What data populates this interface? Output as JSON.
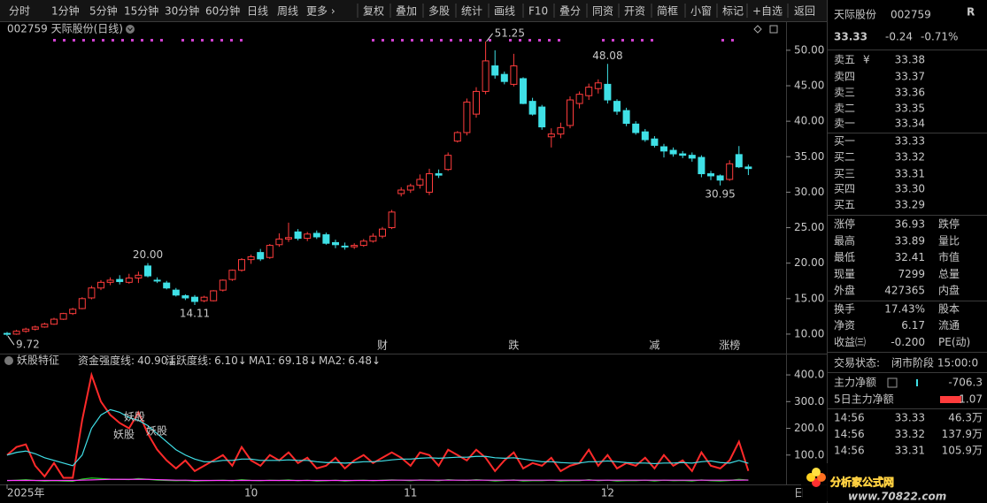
{
  "toolbar": {
    "periods": [
      "分时",
      "1分钟",
      "5分钟",
      "15分钟",
      "30分钟",
      "60分钟",
      "日线",
      "周线",
      "更多 ›"
    ],
    "active": "日线",
    "tools": [
      "复权",
      "叠加",
      "多股",
      "统计",
      "画线",
      "F10",
      "叠分",
      "同资",
      "开资",
      "简框",
      "小窗",
      "标记",
      "+自选"
    ],
    "back": "返回"
  },
  "chart_data": [
    {
      "type": "candlestick",
      "title": "002759 天际股份(日线)",
      "up_color": "#ff3c3c",
      "down_color": "#3fe0e6",
      "ylim": [
        7.5,
        52.1
      ],
      "yticks": [
        {
          "value": 10,
          "label": "10.00"
        },
        {
          "value": 15,
          "label": "15.00"
        },
        {
          "value": 20,
          "label": "20.00"
        },
        {
          "value": 25,
          "label": "25.00"
        },
        {
          "value": 30,
          "label": "30.00"
        },
        {
          "value": 35,
          "label": "35.00"
        },
        {
          "value": 40,
          "label": "40.00"
        },
        {
          "value": 45,
          "label": "45.00"
        },
        {
          "value": 50,
          "label": "50.00"
        }
      ],
      "xticks": [
        {
          "value": 0,
          "label": "2025年"
        },
        {
          "value": 26,
          "label": "10"
        },
        {
          "value": 43,
          "label": "11"
        },
        {
          "value": 64,
          "label": "12"
        }
      ],
      "ohlc": [
        [
          10.1,
          10.3,
          9.72,
          10.0
        ],
        [
          10.0,
          10.6,
          9.9,
          10.4
        ],
        [
          10.4,
          10.9,
          10.2,
          10.7
        ],
        [
          10.7,
          11.2,
          10.5,
          11.0
        ],
        [
          11.0,
          11.6,
          10.9,
          11.4
        ],
        [
          11.4,
          12.3,
          11.3,
          12.1
        ],
        [
          12.1,
          13.0,
          12.0,
          12.9
        ],
        [
          12.9,
          13.7,
          12.7,
          13.5
        ],
        [
          13.6,
          15.2,
          13.5,
          15.0
        ],
        [
          15.1,
          16.8,
          14.9,
          16.5
        ],
        [
          16.5,
          17.6,
          16.2,
          17.3
        ],
        [
          17.3,
          18.0,
          16.9,
          17.6
        ],
        [
          17.7,
          18.3,
          17.0,
          17.4
        ],
        [
          17.3,
          18.5,
          17.1,
          17.9
        ],
        [
          17.9,
          18.8,
          17.2,
          18.3
        ],
        [
          19.6,
          20.0,
          18.0,
          18.2
        ],
        [
          17.6,
          18.0,
          17.2,
          17.5
        ],
        [
          17.2,
          17.5,
          16.3,
          16.5
        ],
        [
          16.2,
          16.5,
          15.3,
          15.5
        ],
        [
          15.4,
          15.6,
          14.8,
          15.1
        ],
        [
          15.2,
          15.5,
          14.11,
          14.6
        ],
        [
          14.7,
          15.4,
          14.5,
          15.2
        ],
        [
          14.7,
          16.2,
          14.6,
          16.1
        ],
        [
          16.2,
          17.7,
          16.0,
          17.6
        ],
        [
          17.7,
          19.1,
          17.5,
          19.0
        ],
        [
          19.0,
          20.7,
          18.8,
          20.5
        ],
        [
          20.5,
          21.2,
          19.9,
          20.9
        ],
        [
          21.5,
          22.0,
          20.3,
          20.6
        ],
        [
          20.8,
          22.7,
          20.6,
          22.5
        ],
        [
          22.6,
          24.2,
          22.3,
          23.4
        ],
        [
          23.4,
          25.7,
          23.0,
          23.6
        ],
        [
          24.4,
          24.8,
          23.2,
          23.5
        ],
        [
          23.5,
          24.4,
          23.1,
          24.1
        ],
        [
          24.2,
          24.6,
          23.4,
          23.7
        ],
        [
          24.0,
          24.3,
          22.6,
          22.8
        ],
        [
          22.9,
          23.3,
          22.1,
          22.6
        ],
        [
          22.4,
          22.9,
          21.9,
          22.3
        ],
        [
          22.3,
          22.8,
          22.0,
          22.5
        ],
        [
          22.5,
          23.4,
          22.3,
          23.1
        ],
        [
          23.1,
          24.2,
          22.9,
          23.8
        ],
        [
          23.8,
          25.1,
          23.5,
          24.8
        ],
        [
          25.0,
          27.5,
          24.8,
          27.2
        ],
        [
          29.8,
          30.7,
          29.4,
          30.3
        ],
        [
          30.3,
          31.2,
          29.9,
          30.9
        ],
        [
          31.0,
          32.5,
          30.5,
          31.8
        ],
        [
          30.0,
          33.3,
          29.6,
          32.6
        ],
        [
          32.6,
          33.2,
          32.0,
          32.4
        ],
        [
          33.2,
          35.6,
          33.0,
          35.2
        ],
        [
          37.2,
          38.6,
          37.0,
          38.4
        ],
        [
          38.4,
          43.2,
          38.0,
          42.7
        ],
        [
          41.0,
          44.8,
          40.5,
          44.2
        ],
        [
          44.2,
          51.25,
          43.8,
          48.5
        ],
        [
          47.8,
          50.0,
          46.0,
          46.5
        ],
        [
          46.6,
          47.0,
          45.2,
          45.6
        ],
        [
          45.2,
          49.5,
          44.9,
          47.8
        ],
        [
          46.0,
          46.2,
          42.4,
          42.5
        ],
        [
          42.8,
          43.3,
          40.8,
          41.0
        ],
        [
          42.0,
          42.3,
          38.8,
          39.2
        ],
        [
          37.8,
          39.0,
          36.3,
          38.2
        ],
        [
          38.2,
          39.8,
          37.6,
          39.1
        ],
        [
          39.4,
          43.5,
          39.0,
          43.0
        ],
        [
          42.5,
          44.2,
          41.8,
          43.8
        ],
        [
          43.6,
          45.3,
          43.0,
          44.8
        ],
        [
          44.6,
          45.9,
          43.9,
          45.4
        ],
        [
          45.2,
          48.08,
          42.5,
          43.0
        ],
        [
          42.8,
          43.1,
          40.9,
          41.4
        ],
        [
          41.5,
          41.9,
          39.3,
          39.7
        ],
        [
          39.6,
          40.0,
          38.1,
          38.4
        ],
        [
          38.5,
          38.9,
          37.1,
          37.4
        ],
        [
          37.5,
          37.9,
          36.3,
          36.6
        ],
        [
          36.4,
          36.8,
          34.9,
          35.8
        ],
        [
          35.9,
          36.3,
          35.0,
          35.4
        ],
        [
          35.4,
          35.8,
          34.8,
          35.2
        ],
        [
          35.2,
          35.6,
          34.3,
          34.8
        ],
        [
          34.9,
          35.2,
          32.1,
          32.6
        ],
        [
          32.6,
          33.0,
          31.7,
          32.3
        ],
        [
          32.3,
          32.5,
          30.95,
          31.7
        ],
        [
          31.8,
          34.5,
          31.6,
          34.0
        ],
        [
          35.3,
          36.5,
          33.4,
          33.57
        ],
        [
          33.55,
          33.89,
          32.41,
          33.33
        ]
      ],
      "annotations": [
        {
          "text": "51.25",
          "color": "#e0e0e0"
        },
        {
          "text": "48.08",
          "color": "#ff3c3c"
        },
        {
          "text": "20.00",
          "color": "#ff3c3c"
        },
        {
          "text": "14.11",
          "color": "#3fe0e6"
        },
        {
          "text": "9.72",
          "color": "#e0e0e0"
        },
        {
          "text": "30.95",
          "color": "#3fe0e6"
        }
      ],
      "events": [
        {
          "label": "财",
          "index": 40,
          "color": "#8fd0ff"
        },
        {
          "label": "跌",
          "index": 54,
          "color": "#40e040"
        },
        {
          "label": "减",
          "index": 69,
          "color": "#40e040"
        },
        {
          "label": "涨榜",
          "index": 77,
          "color": "#ff6060"
        }
      ]
    },
    {
      "type": "line",
      "title": "妖股特征",
      "label_separator": ":",
      "ylim": [
        0,
        430
      ],
      "yticks": [
        {
          "value": 100,
          "label": "100.0"
        },
        {
          "value": 200,
          "label": "200.0"
        },
        {
          "value": 300,
          "label": "300.0"
        },
        {
          "value": 400,
          "label": "400.0"
        }
      ],
      "annotations": [
        "妖股",
        "妖股",
        "妖股"
      ],
      "series": [
        {
          "name": "资金强度线",
          "color": "#ff2a2a",
          "current_label": "40.90",
          "trend": "↓",
          "values": [
            100,
            130,
            140,
            60,
            20,
            70,
            15,
            15,
            230,
            400,
            300,
            250,
            220,
            200,
            260,
            180,
            120,
            80,
            50,
            80,
            40,
            60,
            80,
            100,
            60,
            130,
            80,
            60,
            100,
            80,
            110,
            70,
            90,
            50,
            60,
            90,
            50,
            80,
            100,
            70,
            90,
            110,
            90,
            60,
            110,
            100,
            60,
            120,
            100,
            80,
            120,
            90,
            40,
            80,
            110,
            50,
            70,
            60,
            90,
            40,
            60,
            70,
            120,
            60,
            100,
            50,
            70,
            60,
            90,
            50,
            100,
            60,
            80,
            40,
            110,
            60,
            50,
            80,
            150,
            40.9
          ]
        },
        {
          "name": "活跃度线",
          "color": "#22cc22",
          "current_label": "6.10",
          "trend": "↓",
          "values": [
            4,
            6,
            8,
            5,
            3,
            4,
            3,
            2,
            10,
            14,
            12,
            10,
            9,
            8,
            12,
            9,
            6,
            5,
            4,
            5,
            3,
            4,
            5,
            6,
            4,
            8,
            5,
            4,
            6,
            5,
            7,
            4,
            6,
            3,
            4,
            6,
            3,
            5,
            6,
            4,
            6,
            7,
            6,
            4,
            7,
            6,
            4,
            8,
            6,
            5,
            8,
            6,
            3,
            5,
            7,
            3,
            4,
            4,
            6,
            3,
            4,
            4,
            8,
            4,
            6,
            3,
            4,
            4,
            6,
            3,
            6,
            4,
            5,
            3,
            7,
            4,
            3,
            5,
            9,
            6.1
          ]
        },
        {
          "name": "MA1",
          "color": "#40e0e8",
          "current_label": "69.18",
          "trend": "↓",
          "values": [
            100,
            110,
            115,
            105,
            90,
            80,
            70,
            60,
            100,
            200,
            250,
            270,
            260,
            240,
            230,
            210,
            180,
            150,
            120,
            100,
            85,
            75,
            75,
            80,
            80,
            85,
            85,
            80,
            80,
            80,
            82,
            80,
            80,
            75,
            72,
            72,
            70,
            72,
            75,
            75,
            78,
            82,
            85,
            85,
            88,
            90,
            88,
            90,
            92,
            92,
            95,
            95,
            90,
            88,
            90,
            85,
            80,
            75,
            75,
            72,
            70,
            70,
            75,
            75,
            78,
            75,
            72,
            70,
            70,
            68,
            70,
            70,
            72,
            70,
            75,
            78,
            72,
            70,
            80,
            69.18
          ]
        },
        {
          "name": "MA2",
          "color": "#ff3cff",
          "current_label": "6.48",
          "trend": "↓",
          "values": [
            5,
            5,
            5,
            5,
            5,
            5,
            5,
            5,
            6,
            7,
            8,
            9,
            9,
            9,
            9,
            9,
            8,
            7,
            6,
            6,
            5,
            5,
            5,
            5,
            5,
            5,
            5,
            5,
            5,
            5,
            5,
            5,
            5,
            5,
            5,
            5,
            5,
            5,
            5,
            5,
            5,
            6,
            6,
            6,
            6,
            6,
            6,
            6,
            6,
            6,
            6,
            6,
            6,
            6,
            6,
            6,
            6,
            6,
            6,
            6,
            6,
            6,
            6,
            6,
            6,
            6,
            6,
            6,
            6,
            6,
            6,
            6,
            6,
            6,
            6,
            6,
            6,
            6,
            6,
            6.48
          ]
        }
      ]
    }
  ],
  "corner_label": "日",
  "quote_panel": {
    "name": "天际股份",
    "code": "002759",
    "badge": "R",
    "price": "33.33",
    "change": "-0.24",
    "change_pct": "-0.71%",
    "currency_icon": "¥",
    "asks": [
      {
        "label": "卖五",
        "price": "33.38"
      },
      {
        "label": "卖四",
        "price": "33.37"
      },
      {
        "label": "卖三",
        "price": "33.36"
      },
      {
        "label": "卖二",
        "price": "33.35"
      },
      {
        "label": "卖一",
        "price": "33.34"
      }
    ],
    "bids": [
      {
        "label": "买一",
        "price": "33.33"
      },
      {
        "label": "买二",
        "price": "33.32"
      },
      {
        "label": "买三",
        "price": "33.31"
      },
      {
        "label": "买四",
        "price": "33.30"
      },
      {
        "label": "买五",
        "price": "33.29"
      }
    ],
    "stats": [
      {
        "label": "涨停",
        "value": "36.93",
        "label2": "跌停"
      },
      {
        "label": "最高",
        "value": "33.89",
        "label2": "量比"
      },
      {
        "label": "最低",
        "value": "32.41",
        "label2": "市值"
      },
      {
        "label": "现量",
        "value": "7299",
        "label2": "总量"
      },
      {
        "label": "外盘",
        "value": "427365",
        "label2": "内盘"
      }
    ],
    "stats2": [
      {
        "label": "换手",
        "value": "17.43%",
        "label2": "股本"
      },
      {
        "label": "净资",
        "value": "6.17",
        "label2": "流通"
      },
      {
        "label": "收益㈢",
        "value": "-0.200",
        "label2": "PE(动)"
      }
    ],
    "status": {
      "label": "交易状态:",
      "value": "闭市阶段 15:00:0"
    },
    "flows": [
      {
        "label": "主力净额",
        "value": "-706.3"
      },
      {
        "label": "5日主力净额",
        "value": "1.07"
      }
    ],
    "trades": [
      {
        "time": "14:56",
        "price": "33.33",
        "volume": "46.3万"
      },
      {
        "time": "14:56",
        "price": "33.32",
        "volume": "137.9万"
      },
      {
        "time": "14:56",
        "price": "33.31",
        "volume": "105.9万"
      }
    ]
  },
  "watermark": {
    "title": "分析家公式网",
    "url": "www.70822.com"
  }
}
